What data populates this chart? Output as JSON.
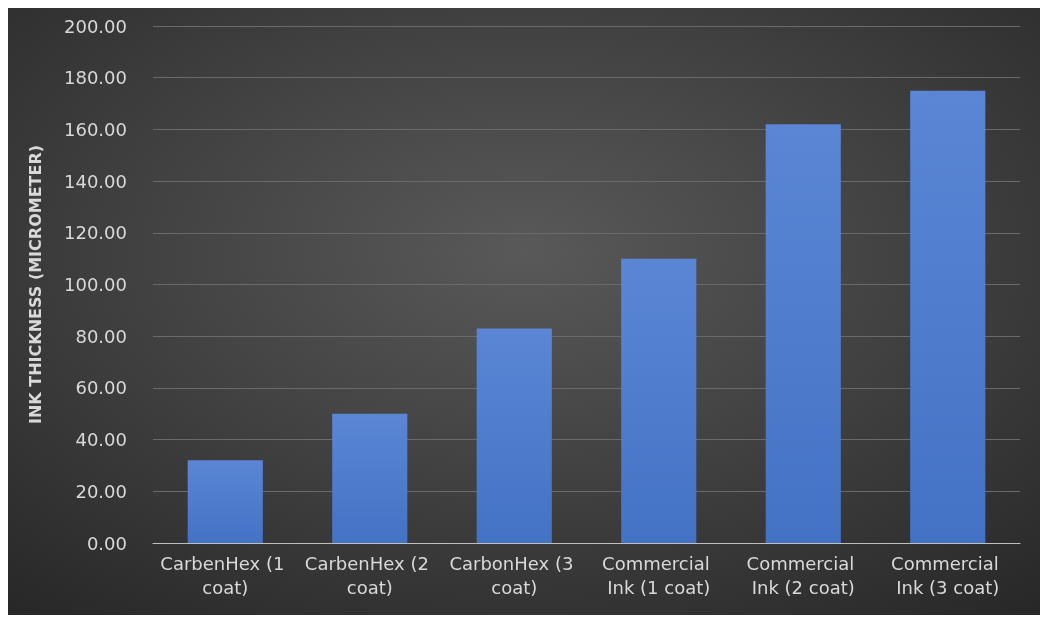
{
  "chart_data": {
    "type": "bar",
    "ylabel": "INK THICKNESS (MICROMETER)",
    "categories": [
      "CarbenHex (1 coat)",
      "CarbenHex (2 coat)",
      "CarbonHex (3 coat)",
      "Commercial Ink (1 coat)",
      "Commercial Ink (2 coat)",
      "Commercial Ink (3 coat)"
    ],
    "values": [
      32,
      50,
      83,
      110,
      162,
      175
    ],
    "color": "#4472c4",
    "ylim": [
      0,
      200
    ],
    "yticks": [
      {
        "value": 0,
        "label": "0.00"
      },
      {
        "value": 20,
        "label": "20.00"
      },
      {
        "value": 40,
        "label": "40.00"
      },
      {
        "value": 60,
        "label": "60.00"
      },
      {
        "value": 80,
        "label": "80.00"
      },
      {
        "value": 100,
        "label": "100.00"
      },
      {
        "value": 120,
        "label": "120.00"
      },
      {
        "value": 140,
        "label": "140.00"
      },
      {
        "value": 160,
        "label": "160.00"
      },
      {
        "value": 180,
        "label": "180.00"
      },
      {
        "value": 200,
        "label": "200.00"
      }
    ],
    "grid": "y"
  }
}
